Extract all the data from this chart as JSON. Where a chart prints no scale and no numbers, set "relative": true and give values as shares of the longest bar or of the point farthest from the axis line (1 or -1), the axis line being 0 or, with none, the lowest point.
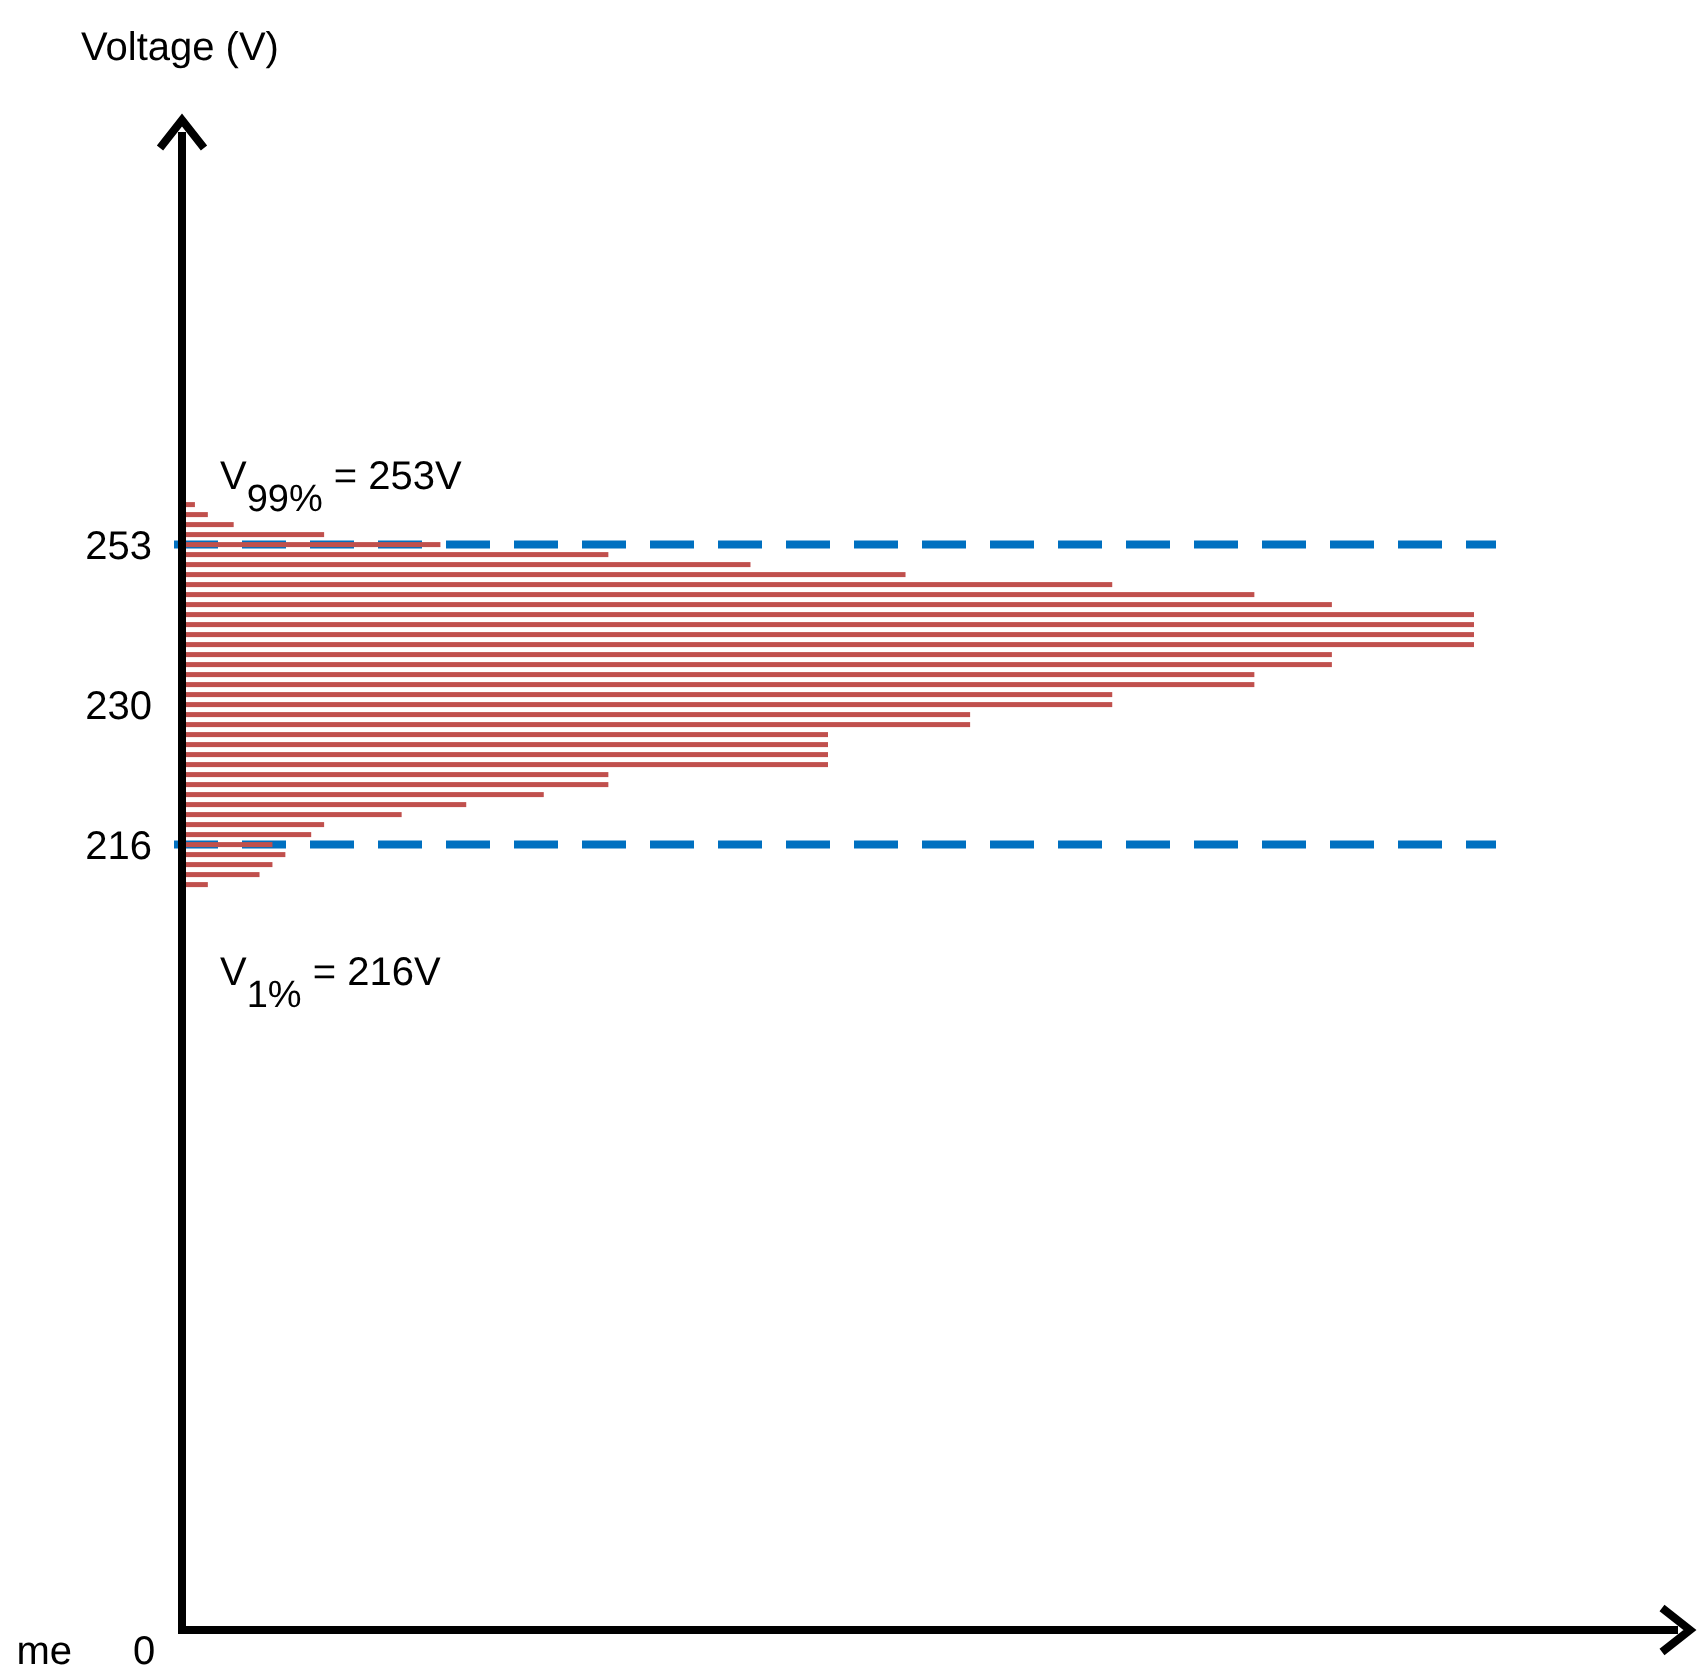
{
  "chart_data": {
    "type": "bar",
    "orientation": "horizontal",
    "relative": true,
    "color": "#c0504d",
    "categories": [
      null,
      null,
      null,
      null,
      "253",
      null,
      null,
      null,
      null,
      null,
      null,
      null,
      null,
      null,
      null,
      null,
      null,
      null,
      null,
      null,
      "230",
      null,
      null,
      null,
      null,
      null,
      null,
      null,
      null,
      null,
      null,
      null,
      null,
      null,
      "216",
      null,
      null,
      null,
      null
    ],
    "values": [
      0.01,
      0.02,
      0.04,
      0.11,
      0.2,
      0.33,
      0.44,
      0.56,
      0.72,
      0.83,
      0.89,
      1,
      1,
      1,
      1,
      0.89,
      0.89,
      0.83,
      0.83,
      0.72,
      0.72,
      0.61,
      0.61,
      0.5,
      0.5,
      0.5,
      0.5,
      0.33,
      0.33,
      0.28,
      0.22,
      0.17,
      0.11,
      0.1,
      0.07,
      0.08,
      0.07,
      0.06,
      0.02
    ],
    "ref_lines": [
      {
        "axis": "y",
        "value": "253",
        "label": "V$_{99%}$ = 253V",
        "color": "#0070c0",
        "line_style": "dashed"
      },
      {
        "axis": "y",
        "value": "216",
        "label": "V$_{1%}$ = 216V",
        "color": "#0070c0",
        "line_style": "dashed"
      }
    ],
    "annotations": [
      "Voltage (V)",
      "me",
      "0"
    ]
  }
}
